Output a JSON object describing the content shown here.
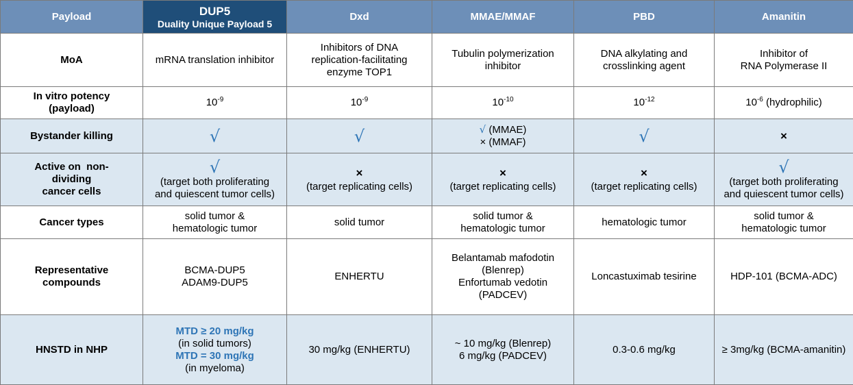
{
  "header": {
    "payload_label": "Payload",
    "dup5_title": "DUP5",
    "dup5_subtitle": "Duality Unique Payload 5",
    "dxd": "Dxd",
    "mmae": "MMAE/MMAF",
    "pbd": "PBD",
    "amanitin": "Amanitin"
  },
  "icons": {
    "check": "√",
    "cross": "×"
  },
  "rows": {
    "moa": {
      "label": "MoA",
      "dup5": "mRNA translation inhibitor",
      "dxd": [
        "Inhibitors of DNA",
        "replication-facilitating",
        "enzyme TOP1"
      ],
      "mmae": [
        "Tubulin polymerization",
        "inhibitor"
      ],
      "pbd": [
        "DNA alkylating and",
        "crosslinking agent"
      ],
      "amanitin": [
        "Inhibitor of",
        "RNA Polymerase II"
      ]
    },
    "potency": {
      "label_line1": "In vitro potency",
      "label_line2": "(payload)",
      "dup5": {
        "base": "10",
        "exp": "-9",
        "suffix": ""
      },
      "dxd": {
        "base": "10",
        "exp": "-9",
        "suffix": ""
      },
      "mmae": {
        "base": "10",
        "exp": "-10",
        "suffix": ""
      },
      "pbd": {
        "base": "10",
        "exp": "-12",
        "suffix": ""
      },
      "amanitin": {
        "base": "10",
        "exp": "-6",
        "suffix": " (hydrophilic)"
      }
    },
    "bystander": {
      "label": "Bystander killing",
      "mmae_line1": "(MMAE)",
      "mmae_line2": "(MMAF)"
    },
    "nondividing": {
      "label": [
        "Active on  non-",
        "dividing",
        "cancer cells"
      ],
      "dup5": [
        "(target both proliferating",
        "and quiescent tumor cells)"
      ],
      "dxd": "(target replicating cells)",
      "mmae": "(target replicating cells)",
      "pbd": "(target replicating cells)",
      "amanitin": [
        "(target both proliferating",
        "and quiescent tumor cells)"
      ]
    },
    "cancer_types": {
      "label": "Cancer types",
      "dup5": [
        "solid tumor &",
        "hematologic tumor"
      ],
      "dxd": "solid tumor",
      "mmae": [
        "solid tumor &",
        "hematologic tumor"
      ],
      "pbd": "hematologic tumor",
      "amanitin": [
        "solid tumor &",
        "hematologic tumor"
      ]
    },
    "compounds": {
      "label": [
        "Representative",
        "compounds"
      ],
      "dup5": [
        "BCMA-DUP5",
        "ADAM9-DUP5"
      ],
      "dxd": "ENHERTU",
      "mmae": [
        "Belantamab mafodotin",
        "(Blenrep)",
        "Enfortumab vedotin",
        "(PADCEV)"
      ],
      "pbd": "Loncastuximab tesirine",
      "amanitin": "HDP-101 (BCMA-ADC)"
    },
    "hnstd": {
      "label": "HNSTD in NHP",
      "dup5": [
        "MTD ≥ 20 mg/kg",
        "(in solid tumors)",
        "MTD = 30 mg/kg",
        "(in myeloma)"
      ],
      "dxd": "30 mg/kg (ENHERTU)",
      "mmae": [
        "~ 10 mg/kg (Blenrep)",
        "6 mg/kg (PADCEV)"
      ],
      "pbd": "0.3-0.6 mg/kg",
      "amanitin": "≥ 3mg/kg (BCMA-amanitin)"
    }
  }
}
